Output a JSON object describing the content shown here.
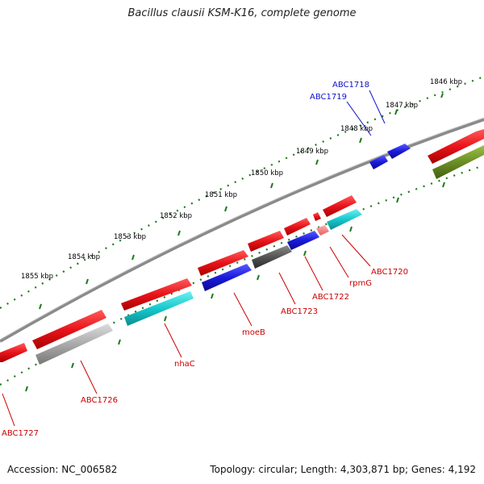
{
  "title": "Bacillus clausii KSM-K16, complete genome",
  "footer": {
    "accession": "Accession: NC_006582",
    "topology": "Topology: circular; Length: 4,303,871 bp; Genes: 4,192"
  },
  "colors": {
    "forward_strand": "#e8141a",
    "reverse_cyan": "#16c8cc",
    "reverse_blue": "#1a1adc",
    "reverse_gray": "#9a9a9a",
    "reverse_dark": "#555555",
    "olive": "#6b8e23",
    "tick_green": "#1f7a1f",
    "label_red": "#cc0000",
    "label_blue": "#1010cc"
  },
  "ticks": [
    "1846 kbp",
    "1847 kbp",
    "1848 kbp",
    "1849 kbp",
    "1850 kbp",
    "1851 kbp",
    "1852 kbp",
    "1853 kbp",
    "1854 kbp",
    "1855 kbp"
  ],
  "gene_labels": {
    "abc1718": "ABC1718",
    "abc1719": "ABC1719",
    "abc1720": "ABC1720",
    "rpmg": "rpmG",
    "abc1722": "ABC1722",
    "abc1723": "ABC1723",
    "moeb": "moeB",
    "nhac": "nhaC",
    "abc1726": "ABC1726",
    "abc1727": "ABC1727"
  }
}
